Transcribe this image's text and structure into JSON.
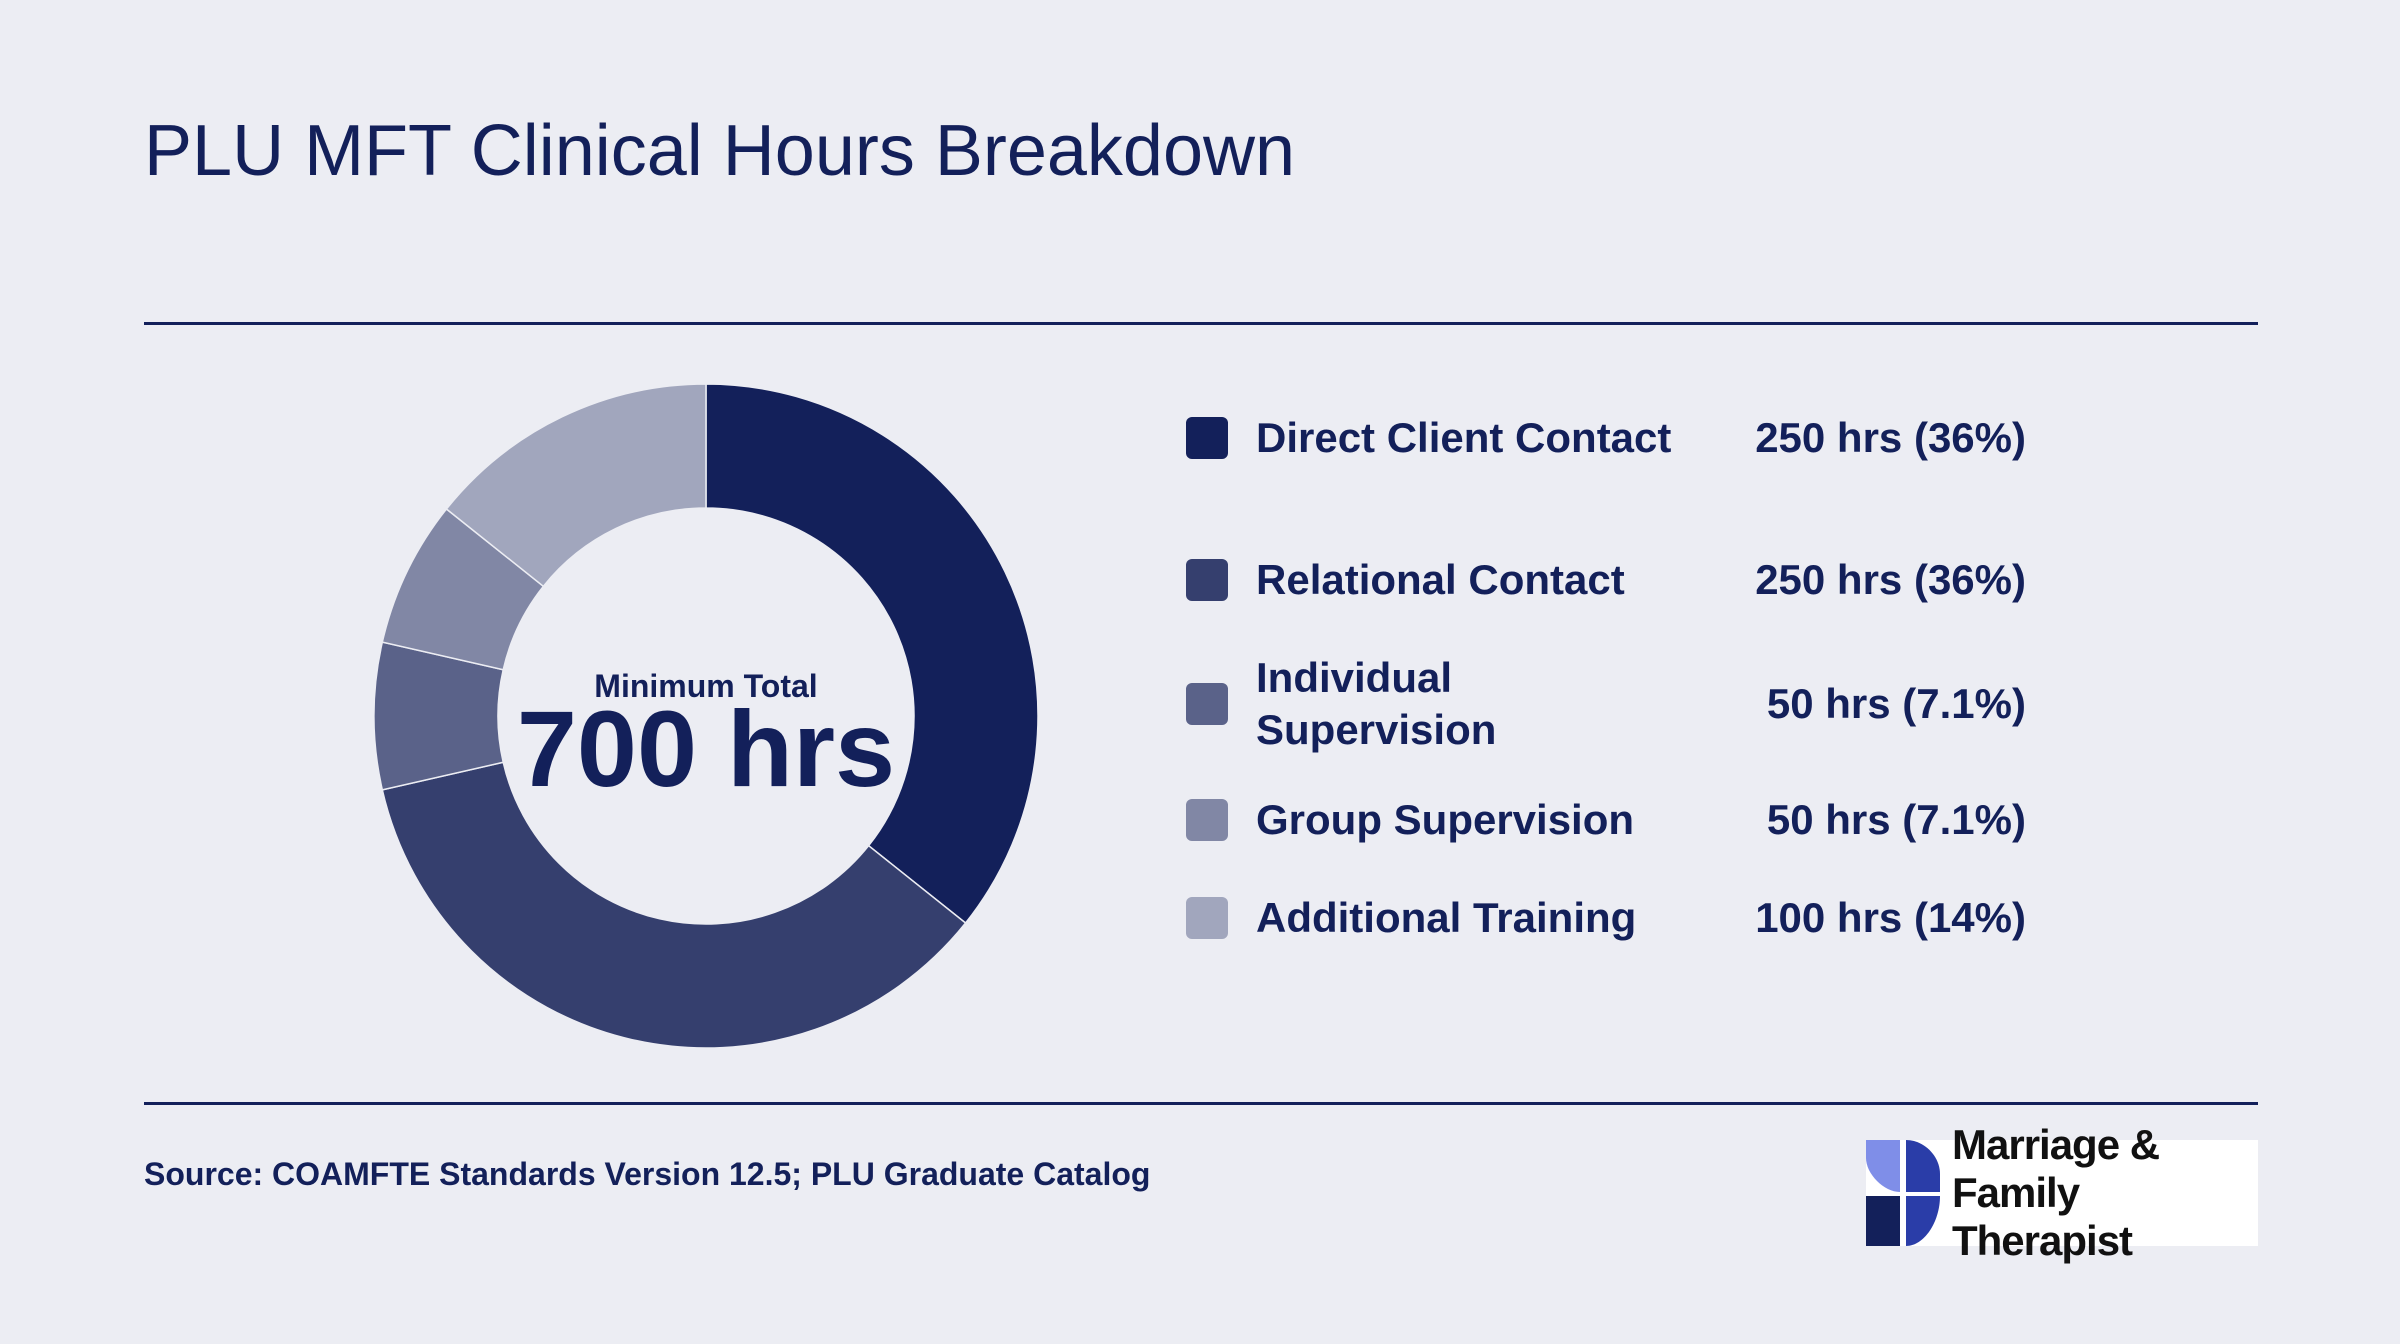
{
  "title": "PLU MFT Clinical Hours Breakdown",
  "center": {
    "label": "Minimum Total",
    "value": "700 hrs"
  },
  "source": "Source: COAMFTE Standards Version 12.5; PLU Graduate Catalog",
  "logo": {
    "line1": "Marriage & Family",
    "line2": "Therapist"
  },
  "colors": {
    "background": "#ecedf3",
    "text": "#13205a",
    "segments": [
      "#13205a",
      "#353f6e",
      "#5a6289",
      "#8187a5",
      "#a1a6bd"
    ]
  },
  "chart_data": {
    "type": "pie",
    "variant": "donut",
    "total": 700,
    "unit": "hrs",
    "categories": [
      "Direct Client Contact",
      "Relational Contact",
      "Individual Supervision",
      "Group Supervision",
      "Additional Training"
    ],
    "values": [
      250,
      250,
      50,
      50,
      100
    ],
    "value_labels": [
      "250 hrs (36%)",
      "250 hrs (36%)",
      "50 hrs (7.1%)",
      "50 hrs (7.1%)",
      "100 hrs (14%)"
    ],
    "legend_position": "right"
  }
}
